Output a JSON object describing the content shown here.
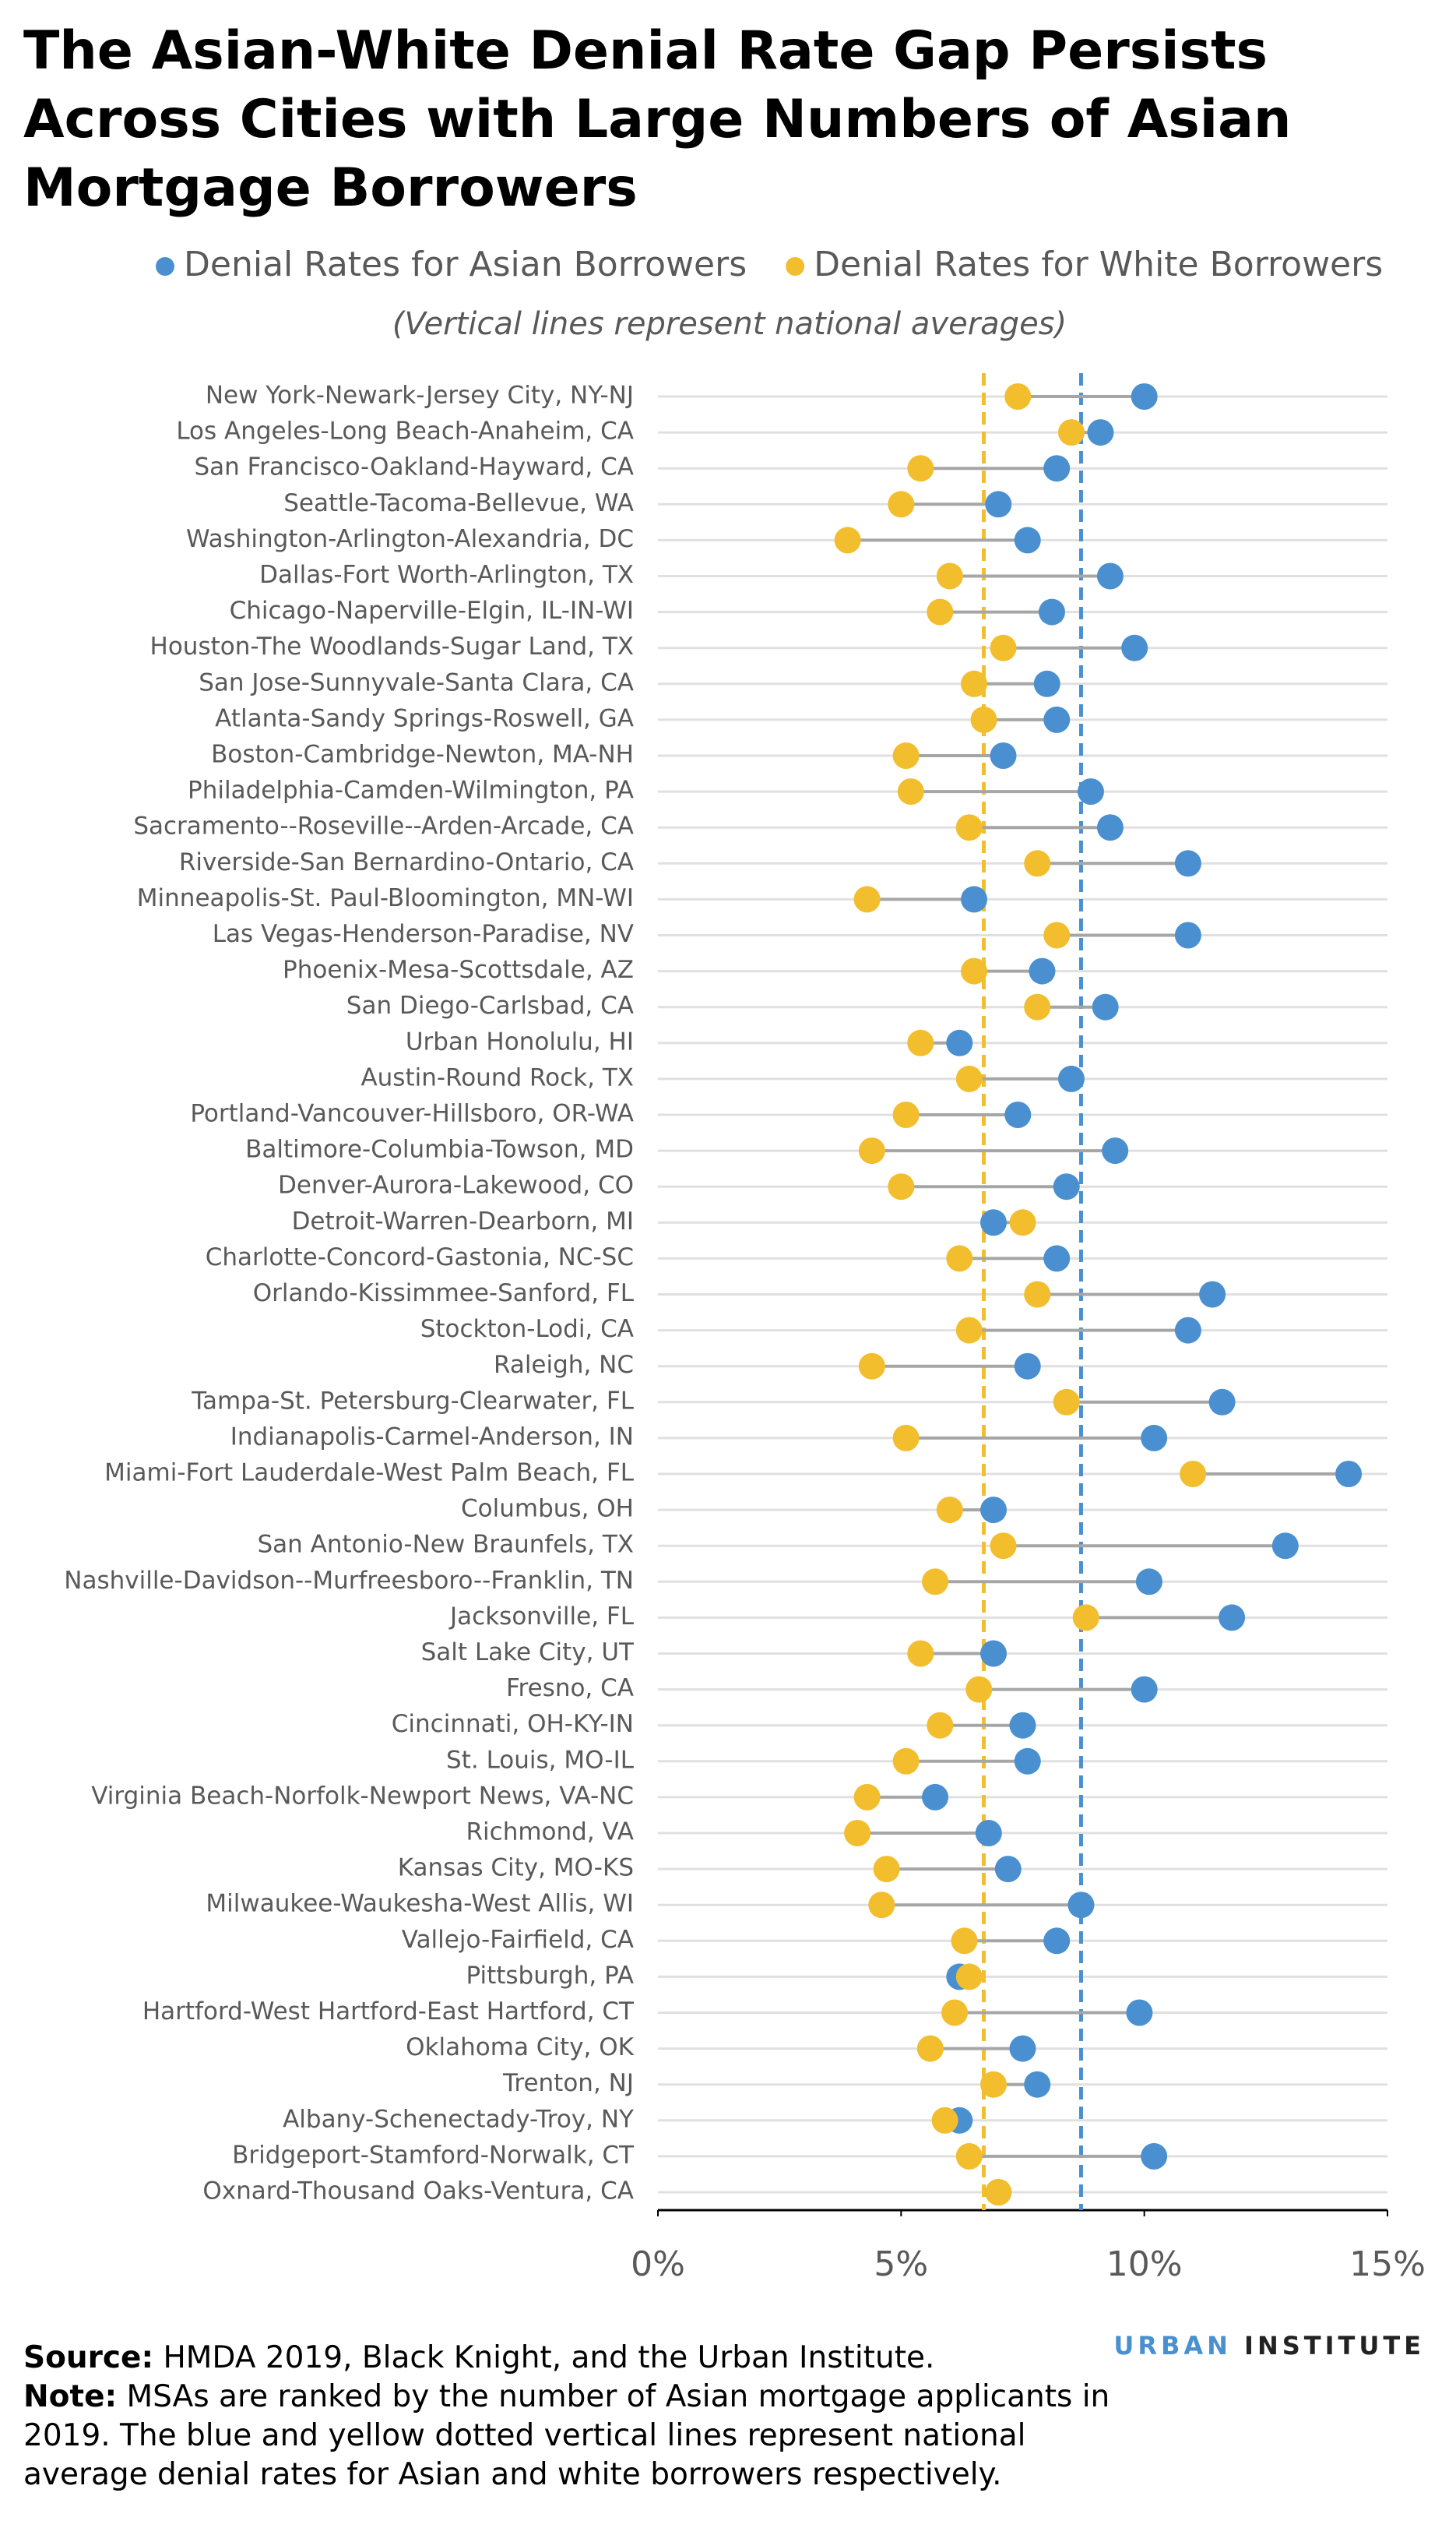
{
  "chart_data": {
    "type": "dumbbell",
    "title": "The Asian-White Denial Rate Gap Persists Across Cities with Large Numbers of Asian Mortgage Borrowers",
    "subtitle": "(Vertical lines represent national averages)",
    "categories": [
      "New York-Newark-Jersey City, NY-NJ",
      "Los Angeles-Long Beach-Anaheim, CA",
      "San Francisco-Oakland-Hayward, CA",
      "Seattle-Tacoma-Bellevue, WA",
      "Washington-Arlington-Alexandria, DC",
      "Dallas-Fort Worth-Arlington, TX",
      "Chicago-Naperville-Elgin, IL-IN-WI",
      "Houston-The Woodlands-Sugar Land, TX",
      "San Jose-Sunnyvale-Santa Clara, CA",
      "Atlanta-Sandy Springs-Roswell, GA",
      "Boston-Cambridge-Newton, MA-NH",
      "Philadelphia-Camden-Wilmington, PA",
      "Sacramento--Roseville--Arden-Arcade, CA",
      "Riverside-San Bernardino-Ontario, CA",
      "Minneapolis-St. Paul-Bloomington, MN-WI",
      "Las Vegas-Henderson-Paradise, NV",
      "Phoenix-Mesa-Scottsdale, AZ",
      "San Diego-Carlsbad, CA",
      "Urban Honolulu, HI",
      "Austin-Round Rock, TX",
      "Portland-Vancouver-Hillsboro, OR-WA",
      "Baltimore-Columbia-Towson, MD",
      "Denver-Aurora-Lakewood, CO",
      "Detroit-Warren-Dearborn, MI",
      "Charlotte-Concord-Gastonia, NC-SC",
      "Orlando-Kissimmee-Sanford, FL",
      "Stockton-Lodi, CA",
      "Raleigh, NC",
      "Tampa-St. Petersburg-Clearwater, FL",
      "Indianapolis-Carmel-Anderson, IN",
      "Miami-Fort Lauderdale-West Palm Beach, FL",
      "Columbus, OH",
      "San Antonio-New Braunfels, TX",
      "Nashville-Davidson--Murfreesboro--Franklin, TN",
      "Jacksonville, FL",
      "Salt Lake City, UT",
      "Fresno, CA",
      "Cincinnati, OH-KY-IN",
      "St. Louis, MO-IL",
      "Virginia Beach-Norfolk-Newport News, VA-NC",
      "Richmond, VA",
      "Kansas City, MO-KS",
      "Milwaukee-Waukesha-West Allis, WI",
      "Vallejo-Fairfield, CA",
      "Pittsburgh, PA",
      "Hartford-West Hartford-East Hartford, CT",
      "Oklahoma City, OK",
      "Trenton, NJ",
      "Albany-Schenectady-Troy, NY",
      "Bridgeport-Stamford-Norwalk, CT",
      "Oxnard-Thousand Oaks-Ventura, CA"
    ],
    "series": [
      {
        "name": "Denial Rates for Asian Borrowers",
        "color": "#4a90d0",
        "average": 8.7,
        "values": [
          10.0,
          9.1,
          8.2,
          7.0,
          7.6,
          9.3,
          8.1,
          9.8,
          8.0,
          8.2,
          7.1,
          8.9,
          9.3,
          10.9,
          6.5,
          10.9,
          7.9,
          9.2,
          6.2,
          8.5,
          7.4,
          9.4,
          8.4,
          6.9,
          8.2,
          11.4,
          10.9,
          7.6,
          11.6,
          10.2,
          14.2,
          6.9,
          12.9,
          10.1,
          11.8,
          6.9,
          10.0,
          7.5,
          7.6,
          5.7,
          6.8,
          7.2,
          8.7,
          8.2,
          6.2,
          9.9,
          7.5,
          7.8,
          6.2,
          10.2,
          7.0
        ]
      },
      {
        "name": "Denial Rates for White Borrowers",
        "color": "#f2be2d",
        "average": 6.7,
        "values": [
          7.4,
          8.5,
          5.4,
          5.0,
          3.9,
          6.0,
          5.8,
          7.1,
          6.5,
          6.7,
          5.1,
          5.2,
          6.4,
          7.8,
          4.3,
          8.2,
          6.5,
          7.8,
          5.4,
          6.4,
          5.1,
          4.4,
          5.0,
          7.5,
          6.2,
          7.8,
          6.4,
          4.4,
          8.4,
          5.1,
          11.0,
          6.0,
          7.1,
          5.7,
          8.8,
          5.4,
          6.6,
          5.8,
          5.1,
          4.3,
          4.1,
          4.7,
          4.6,
          6.3,
          6.4,
          6.1,
          5.6,
          6.9,
          5.9,
          6.4,
          7.0
        ]
      }
    ],
    "xlim": [
      0,
      15
    ],
    "xticks": [
      {
        "value": 0,
        "label": "0%"
      },
      {
        "value": 5,
        "label": "5%"
      },
      {
        "value": 10,
        "label": "10%"
      },
      {
        "value": 15,
        "label": "15%"
      }
    ],
    "source_label": "Source:",
    "source": "HMDA 2019, Black Knight, and the Urban Institute.",
    "note_label": "Note:",
    "note": "MSAs are ranked by the number of Asian mortgage applicants in 2019. The blue and yellow dotted vertical lines represent national average denial rates for Asian and white borrowers respectively.",
    "logo_part1": "URBAN",
    "logo_part2": "INSTITUTE"
  }
}
